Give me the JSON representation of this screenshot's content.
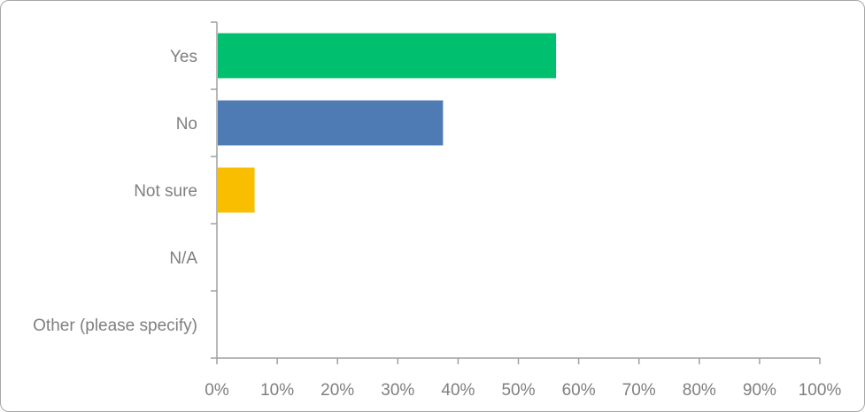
{
  "chart_data": {
    "type": "bar",
    "orientation": "horizontal",
    "categories": [
      "Yes",
      "No",
      "Not sure",
      "N/A",
      "Other (please specify)"
    ],
    "values": [
      56.25,
      37.5,
      6.25,
      0,
      0
    ],
    "colors": [
      "#00bf6f",
      "#4f7bb5",
      "#f9be00",
      "#9e9e9e",
      "#9e9e9e"
    ],
    "xlim": [
      0,
      100
    ],
    "xticks": [
      "0%",
      "10%",
      "20%",
      "30%",
      "40%",
      "50%",
      "60%",
      "70%",
      "80%",
      "90%",
      "100%"
    ],
    "grid": false,
    "legend": "none",
    "title": "",
    "xlabel": "",
    "ylabel": ""
  }
}
